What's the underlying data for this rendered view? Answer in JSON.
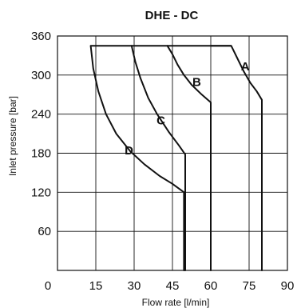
{
  "chart_data": {
    "type": "line",
    "title": "DHE - DC",
    "xlabel": "Flow rate [l/min]",
    "ylabel": "Inlet pressure [bar]",
    "xlim": [
      0,
      90
    ],
    "ylim": [
      0,
      360
    ],
    "x_ticks": [
      0,
      15,
      30,
      45,
      60,
      75,
      90
    ],
    "x_tick_labels": [
      "0",
      "15",
      "30",
      "45",
      "60",
      "75",
      "90"
    ],
    "y_ticks": [
      60,
      120,
      180,
      240,
      300,
      360
    ],
    "y_tick_labels": [
      "60",
      "120",
      "180",
      "240",
      "300",
      "360"
    ],
    "grid": true,
    "plateau_pressure": 345,
    "series": [
      {
        "name": "A",
        "points": [
          [
            60,
            345
          ],
          [
            68,
            345
          ],
          [
            70.5,
            325
          ],
          [
            73,
            305
          ],
          [
            75.5,
            288
          ],
          [
            78,
            275
          ],
          [
            80,
            262
          ],
          [
            80,
            0
          ]
        ]
      },
      {
        "name": "B",
        "points": [
          [
            43,
            345
          ],
          [
            45,
            332
          ],
          [
            47,
            316
          ],
          [
            49.5,
            300
          ],
          [
            52.5,
            285
          ],
          [
            56.5,
            270
          ],
          [
            60,
            258
          ],
          [
            60,
            0
          ]
        ]
      },
      {
        "name": "C",
        "points": [
          [
            29,
            345
          ],
          [
            30.5,
            320
          ],
          [
            32.5,
            295
          ],
          [
            35.5,
            265
          ],
          [
            39,
            240
          ],
          [
            43.5,
            213
          ],
          [
            47.5,
            192
          ],
          [
            50,
            178
          ],
          [
            50,
            0
          ]
        ]
      },
      {
        "name": "D",
        "points": [
          [
            13,
            345
          ],
          [
            14,
            310
          ],
          [
            16,
            275
          ],
          [
            19,
            240
          ],
          [
            23,
            210
          ],
          [
            28.5,
            183
          ],
          [
            34,
            163
          ],
          [
            40,
            145
          ],
          [
            45,
            133
          ],
          [
            49.5,
            120
          ],
          [
            49.5,
            0
          ]
        ]
      }
    ]
  }
}
